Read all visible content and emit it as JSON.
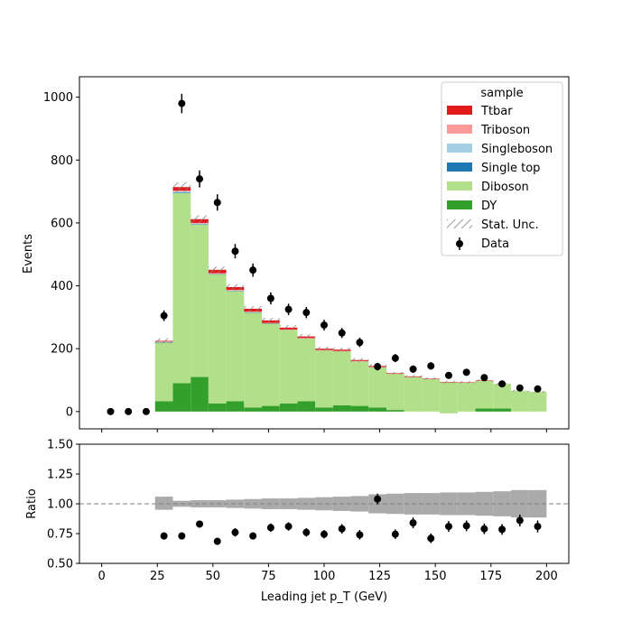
{
  "chart_data": [
    {
      "type": "histogram-stack",
      "panel": "main",
      "xlim": [
        -10,
        210
      ],
      "ylim": [
        -55,
        1065
      ],
      "ylabel": "Events",
      "yticks": [
        0,
        200,
        400,
        600,
        800,
        1000
      ],
      "bin_edges": [
        0,
        8,
        16,
        24,
        32,
        40,
        48,
        56,
        64,
        72,
        80,
        88,
        96,
        104,
        112,
        120,
        128,
        136,
        144,
        152,
        160,
        168,
        176,
        184,
        192,
        200
      ],
      "legend": {
        "title": "sample",
        "placement": "upper right",
        "entries": [
          "Ttbar",
          "Triboson",
          "Singleboson",
          "Single top",
          "Diboson",
          "DY",
          "Stat. Unc.",
          "Data"
        ]
      },
      "colors": {
        "Ttbar": "#e31a1c",
        "Triboson": "#fb9a99",
        "Singleboson": "#a6cee3",
        "Single top": "#1f78b4",
        "Diboson": "#b2df8a",
        "DY": "#33a02c",
        "Data": "#000000"
      },
      "series": [
        {
          "name": "DY",
          "values": [
            0,
            0,
            0,
            33,
            90,
            110,
            26,
            33,
            13,
            18,
            26,
            33,
            13,
            20,
            18,
            13,
            5,
            0,
            0,
            -5,
            0,
            10,
            10,
            0,
            0
          ]
        },
        {
          "name": "Diboson",
          "values": [
            0,
            0,
            0,
            187,
            605,
            485,
            410,
            350,
            302,
            262,
            234,
            200,
            182,
            172,
            142,
            128,
            115,
            110,
            104,
            98,
            92,
            88,
            78,
            66,
            63
          ]
        },
        {
          "name": "Single top",
          "values": [
            0,
            0,
            0,
            1,
            2,
            1,
            1,
            1,
            1,
            1,
            0,
            0,
            0,
            0,
            0,
            0,
            0,
            0,
            0,
            0,
            0,
            0,
            0,
            0,
            0
          ]
        },
        {
          "name": "Singleboson",
          "values": [
            0,
            0,
            0,
            1,
            3,
            2,
            1,
            1,
            1,
            0,
            0,
            0,
            0,
            0,
            0,
            0,
            0,
            0,
            0,
            0,
            0,
            0,
            0,
            0,
            0
          ]
        },
        {
          "name": "Triboson",
          "values": [
            0,
            0,
            0,
            1,
            3,
            2,
            2,
            2,
            1,
            1,
            1,
            1,
            1,
            1,
            1,
            1,
            0,
            0,
            0,
            0,
            0,
            0,
            0,
            0,
            0
          ]
        },
        {
          "name": "Ttbar",
          "values": [
            0,
            0,
            0,
            2,
            11,
            12,
            11,
            9,
            9,
            8,
            6,
            5,
            4,
            4,
            3,
            3,
            2,
            2,
            1,
            1,
            1,
            1,
            0,
            0,
            0
          ]
        }
      ],
      "stat_unc_half": [
        0,
        0,
        0,
        8,
        15,
        12,
        10,
        9,
        8,
        8,
        8,
        7,
        6,
        6,
        6,
        5,
        4,
        4,
        4,
        4,
        4,
        4,
        4,
        3,
        3
      ],
      "data": {
        "x": [
          4,
          12,
          20,
          28,
          36,
          44,
          52,
          60,
          68,
          76,
          84,
          92,
          100,
          108,
          116,
          124,
          132,
          140,
          148,
          156,
          164,
          172,
          180,
          188,
          196
        ],
        "y": [
          0,
          0,
          0,
          305,
          980,
          740,
          665,
          510,
          450,
          360,
          325,
          315,
          275,
          250,
          220,
          143,
          170,
          135,
          145,
          115,
          125,
          108,
          88,
          75,
          72
        ],
        "yerr": [
          0,
          0,
          0,
          17,
          31,
          27,
          26,
          23,
          21,
          19,
          18,
          18,
          17,
          16,
          15,
          12,
          13,
          12,
          12,
          11,
          11,
          10,
          9,
          9,
          8
        ]
      }
    },
    {
      "type": "ratio",
      "panel": "ratio",
      "xlim": [
        -10,
        210
      ],
      "ylim": [
        0.5,
        1.5
      ],
      "xlabel": "Leading jet  p_T (GeV)",
      "ylabel": "Ratio",
      "xticks": [
        0,
        25,
        50,
        75,
        100,
        125,
        150,
        175,
        200
      ],
      "yticks": [
        "0.50",
        "0.75",
        "1.00",
        "1.25",
        "1.50"
      ],
      "reference_line": 1.0,
      "band_lo": [
        1,
        1,
        1,
        0.95,
        0.975,
        0.97,
        0.97,
        0.965,
        0.96,
        0.955,
        0.955,
        0.95,
        0.945,
        0.94,
        0.935,
        0.92,
        0.915,
        0.91,
        0.91,
        0.905,
        0.905,
        0.9,
        0.895,
        0.885,
        0.885
      ],
      "band_hi": [
        1,
        1,
        1,
        1.06,
        1.025,
        1.03,
        1.03,
        1.035,
        1.04,
        1.045,
        1.045,
        1.05,
        1.055,
        1.06,
        1.065,
        1.08,
        1.085,
        1.09,
        1.09,
        1.095,
        1.095,
        1.1,
        1.105,
        1.115,
        1.115
      ],
      "x": [
        28,
        36,
        44,
        52,
        60,
        68,
        76,
        84,
        92,
        100,
        108,
        116,
        124,
        132,
        140,
        148,
        156,
        164,
        172,
        180,
        188,
        196
      ],
      "y": [
        0.73,
        0.73,
        0.83,
        0.685,
        0.76,
        0.73,
        0.8,
        0.81,
        0.76,
        0.745,
        0.79,
        0.74,
        1.04,
        0.745,
        0.84,
        0.71,
        0.81,
        0.815,
        0.79,
        0.785,
        0.86,
        0.81
      ],
      "yerr": [
        0.03,
        0.02,
        0.03,
        0.03,
        0.035,
        0.03,
        0.035,
        0.035,
        0.035,
        0.035,
        0.04,
        0.04,
        0.045,
        0.04,
        0.045,
        0.04,
        0.045,
        0.045,
        0.045,
        0.045,
        0.05,
        0.05
      ]
    }
  ]
}
